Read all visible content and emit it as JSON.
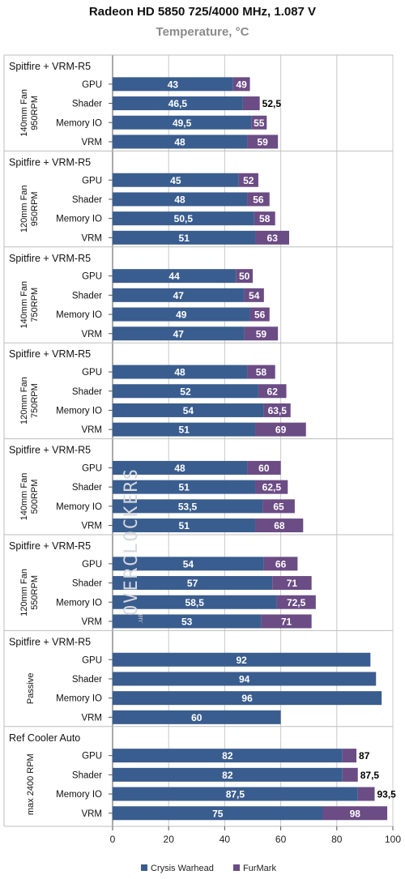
{
  "chart_data": {
    "type": "bar",
    "orientation": "horizontal",
    "title": "Radeon HD 5850 725/4000 MHz, 1.087 V",
    "subtitle": "Temperature, °C",
    "xlim": [
      0,
      100
    ],
    "x_ticks": [
      "0",
      "20",
      "40",
      "60",
      "80",
      "100"
    ],
    "grid": true,
    "stacked": true,
    "legend_position": "bottom",
    "series_names": [
      "Crysis Warhead",
      "FurMark"
    ],
    "colors": {
      "crysis": "#3a5d8f",
      "furmark": "#6b4c85",
      "grid": "#c8c8c8",
      "label_inner": "#ffffff",
      "label_outer": "#000000"
    },
    "groups": [
      {
        "name": "Spitfire + VRM-R5",
        "sub1": "140mm Fan",
        "sub2": "950RPM",
        "rows": [
          {
            "category": "GPU",
            "crysis": 43,
            "crysis_label": "43",
            "furmark": 49,
            "furmark_label": "49"
          },
          {
            "category": "Shader",
            "crysis": 46.5,
            "crysis_label": "46,5",
            "furmark": 52.5,
            "furmark_label": "52,5"
          },
          {
            "category": "Memory IO",
            "crysis": 49.5,
            "crysis_label": "49,5",
            "furmark": 55,
            "furmark_label": "55"
          },
          {
            "category": "VRM",
            "crysis": 48,
            "crysis_label": "48",
            "furmark": 59,
            "furmark_label": "59"
          }
        ]
      },
      {
        "name": "Spitfire + VRM-R5",
        "sub1": "120mm Fan",
        "sub2": "950RPM",
        "rows": [
          {
            "category": "GPU",
            "crysis": 45,
            "crysis_label": "45",
            "furmark": 52,
            "furmark_label": "52"
          },
          {
            "category": "Shader",
            "crysis": 48,
            "crysis_label": "48",
            "furmark": 56,
            "furmark_label": "56"
          },
          {
            "category": "Memory IO",
            "crysis": 50.5,
            "crysis_label": "50,5",
            "furmark": 58,
            "furmark_label": "58"
          },
          {
            "category": "VRM",
            "crysis": 51,
            "crysis_label": "51",
            "furmark": 63,
            "furmark_label": "63"
          }
        ]
      },
      {
        "name": "Spitfire + VRM-R5",
        "sub1": "140mm Fan",
        "sub2": "750RPM",
        "rows": [
          {
            "category": "GPU",
            "crysis": 44,
            "crysis_label": "44",
            "furmark": 50,
            "furmark_label": "50"
          },
          {
            "category": "Shader",
            "crysis": 47,
            "crysis_label": "47",
            "furmark": 54,
            "furmark_label": "54"
          },
          {
            "category": "Memory IO",
            "crysis": 49,
            "crysis_label": "49",
            "furmark": 56,
            "furmark_label": "56"
          },
          {
            "category": "VRM",
            "crysis": 47,
            "crysis_label": "47",
            "furmark": 59,
            "furmark_label": "59"
          }
        ]
      },
      {
        "name": "Spitfire + VRM-R5",
        "sub1": "120mm Fan",
        "sub2": "750RPM",
        "rows": [
          {
            "category": "GPU",
            "crysis": 48,
            "crysis_label": "48",
            "furmark": 58,
            "furmark_label": "58"
          },
          {
            "category": "Shader",
            "crysis": 52,
            "crysis_label": "52",
            "furmark": 62,
            "furmark_label": "62"
          },
          {
            "category": "Memory IO",
            "crysis": 54,
            "crysis_label": "54",
            "furmark": 63.5,
            "furmark_label": "63,5"
          },
          {
            "category": "VRM",
            "crysis": 51,
            "crysis_label": "51",
            "furmark": 69,
            "furmark_label": "69"
          }
        ]
      },
      {
        "name": "Spitfire + VRM-R5",
        "sub1": "140mm Fan",
        "sub2": "500RPM",
        "rows": [
          {
            "category": "GPU",
            "crysis": 48,
            "crysis_label": "48",
            "furmark": 60,
            "furmark_label": "60"
          },
          {
            "category": "Shader",
            "crysis": 51,
            "crysis_label": "51",
            "furmark": 62.5,
            "furmark_label": "62,5"
          },
          {
            "category": "Memory IO",
            "crysis": 53.5,
            "crysis_label": "53,5",
            "furmark": 65,
            "furmark_label": "65"
          },
          {
            "category": "VRM",
            "crysis": 51,
            "crysis_label": "51",
            "furmark": 68,
            "furmark_label": "68"
          }
        ]
      },
      {
        "name": "Spitfire + VRM-R5",
        "sub1": "120mm Fan",
        "sub2": "550RPM",
        "rows": [
          {
            "category": "GPU",
            "crysis": 54,
            "crysis_label": "54",
            "furmark": 66,
            "furmark_label": "66"
          },
          {
            "category": "Shader",
            "crysis": 57,
            "crysis_label": "57",
            "furmark": 71,
            "furmark_label": "71"
          },
          {
            "category": "Memory IO",
            "crysis": 58.5,
            "crysis_label": "58,5",
            "furmark": 72.5,
            "furmark_label": "72,5"
          },
          {
            "category": "VRM",
            "crysis": 53,
            "crysis_label": "53",
            "furmark": 71,
            "furmark_label": "71"
          }
        ]
      },
      {
        "name": "Spitfire + VRM-R5",
        "sub1": "Passive",
        "sub2": "",
        "rows": [
          {
            "category": "GPU",
            "crysis": 92,
            "crysis_label": "92",
            "furmark": null,
            "furmark_label": ""
          },
          {
            "category": "Shader",
            "crysis": 94,
            "crysis_label": "94",
            "furmark": null,
            "furmark_label": ""
          },
          {
            "category": "Memory IO",
            "crysis": 96,
            "crysis_label": "96",
            "furmark": null,
            "furmark_label": ""
          },
          {
            "category": "VRM",
            "crysis": 60,
            "crysis_label": "60",
            "furmark": null,
            "furmark_label": ""
          }
        ]
      },
      {
        "name": "Ref Cooler Auto",
        "sub1": "max 2400 RPM",
        "sub2": "",
        "rows": [
          {
            "category": "GPU",
            "crysis": 82,
            "crysis_label": "82",
            "furmark": 87,
            "furmark_label": "87"
          },
          {
            "category": "Shader",
            "crysis": 82,
            "crysis_label": "82",
            "furmark": 87.5,
            "furmark_label": "87,5"
          },
          {
            "category": "Memory IO",
            "crysis": 87.5,
            "crysis_label": "87,5",
            "furmark": 93.5,
            "furmark_label": "93,5"
          },
          {
            "category": "VRM",
            "crysis": 75,
            "crysis_label": "75",
            "furmark": 98,
            "furmark_label": "98"
          }
        ]
      }
    ]
  },
  "watermark": "OVERCLOCKERS",
  "watermark_suffix": ".ua"
}
